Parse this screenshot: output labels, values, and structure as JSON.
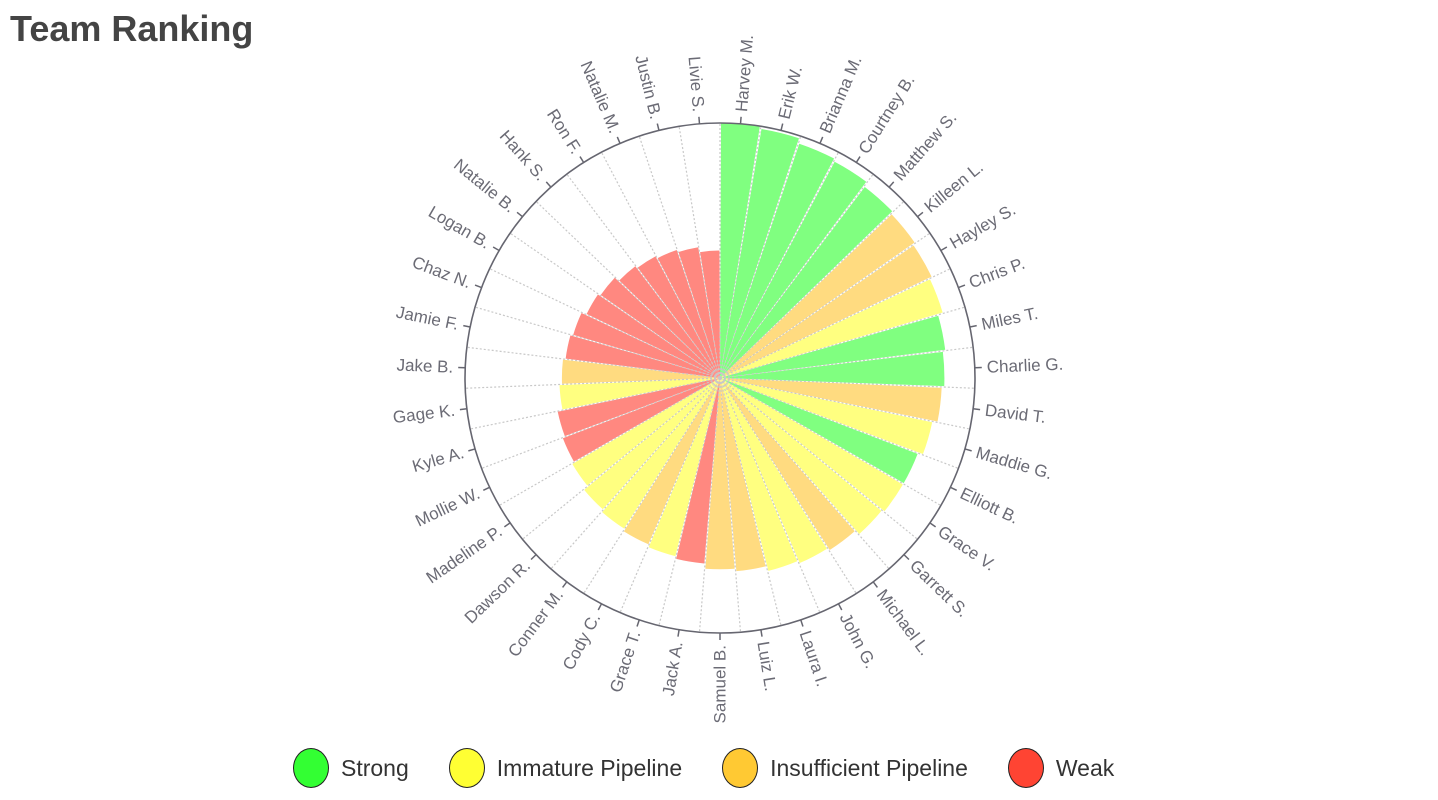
{
  "chart_data": {
    "type": "polar-bar",
    "title": "Team Ranking",
    "grid": true,
    "legend_position": "bottom",
    "categories": [
      "Harvey M.",
      "Erik W.",
      "Brianna M.",
      "Courtney B.",
      "Matthew S.",
      "Killeen L.",
      "Hayley S.",
      "Chris P.",
      "Miles T.",
      "Charlie G.",
      "David T.",
      "Maddie G.",
      "Elliott B.",
      "Grace V.",
      "Garrett S.",
      "Michael L.",
      "John G.",
      "Laura I.",
      "Luiz L.",
      "Samuel B.",
      "Jack A.",
      "Grace T.",
      "Cody C.",
      "Conner M.",
      "Dawson R.",
      "Madeline P.",
      "Mollie W.",
      "Kyle A.",
      "Gage K.",
      "Jake B.",
      "Jamie F.",
      "Chaz N.",
      "Logan B.",
      "Natalie B.",
      "Hank S.",
      "Ron F.",
      "Natalie M.",
      "Justin B.",
      "Livie S."
    ],
    "values": [
      100,
      99,
      97,
      96,
      94,
      93,
      92,
      91,
      89,
      88,
      87,
      85,
      83,
      83,
      82,
      80,
      79,
      78,
      76,
      75,
      73,
      72,
      71,
      70,
      69,
      67,
      66,
      65,
      63,
      62,
      61,
      60,
      58,
      57,
      55,
      54,
      53,
      52,
      50
    ],
    "classes": [
      "Strong",
      "Strong",
      "Strong",
      "Strong",
      "Strong",
      "Insufficient Pipeline",
      "Insufficient Pipeline",
      "Immature Pipeline",
      "Strong",
      "Strong",
      "Insufficient Pipeline",
      "Immature Pipeline",
      "Strong",
      "Immature Pipeline",
      "Immature Pipeline",
      "Insufficient Pipeline",
      "Immature Pipeline",
      "Immature Pipeline",
      "Insufficient Pipeline",
      "Insufficient Pipeline",
      "Weak",
      "Immature Pipeline",
      "Insufficient Pipeline",
      "Immature Pipeline",
      "Immature Pipeline",
      "Immature Pipeline",
      "Weak",
      "Weak",
      "Immature Pipeline",
      "Insufficient Pipeline",
      "Weak",
      "Weak",
      "Weak",
      "Weak",
      "Weak",
      "Weak",
      "Weak",
      "Weak",
      "Weak"
    ],
    "rlim": [
      0,
      100
    ],
    "series": [
      {
        "name": "Strong",
        "bar_color": "#80ff80",
        "marker_color": "#33ff33"
      },
      {
        "name": "Immature Pipeline",
        "bar_color": "#ffff80",
        "marker_color": "#ffff33"
      },
      {
        "name": "Insufficient Pipeline",
        "bar_color": "#ffdb80",
        "marker_color": "#ffc933"
      },
      {
        "name": "Weak",
        "bar_color": "#ff8880",
        "marker_color": "#ff4433"
      }
    ]
  }
}
